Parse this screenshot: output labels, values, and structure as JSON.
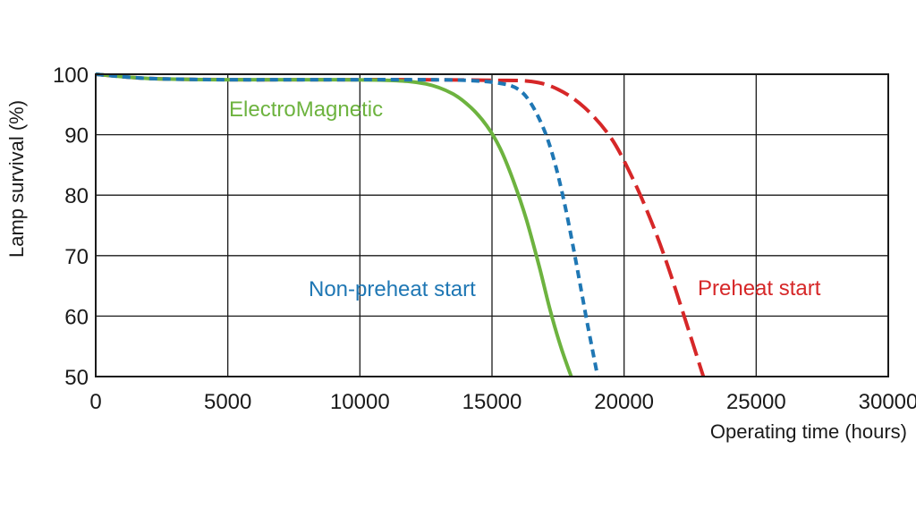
{
  "chart_data": {
    "type": "line",
    "xlabel": "Operating time (hours)",
    "ylabel": "Lamp survival  (%)",
    "xlim": [
      0,
      30000
    ],
    "ylim": [
      50,
      100
    ],
    "xticks": [
      0,
      5000,
      10000,
      15000,
      20000,
      25000,
      30000
    ],
    "yticks": [
      50,
      60,
      70,
      80,
      90,
      100
    ],
    "grid": true,
    "series": [
      {
        "name": "ElectroMagnetic",
        "color": "#6db33f",
        "style": "solid",
        "x": [
          0,
          2000,
          5000,
          8000,
          11000,
          12500,
          13500,
          14200,
          14800,
          15300,
          15800,
          16300,
          16800,
          17200,
          17600,
          18000
        ],
        "y": [
          100,
          99.3,
          99.1,
          99.1,
          99.0,
          98.4,
          96.8,
          94.5,
          91.5,
          87.8,
          82.5,
          76,
          68,
          61,
          55,
          50
        ]
      },
      {
        "name": "Non-preheat start",
        "color": "#1f77b4",
        "style": "dashed",
        "x": [
          0,
          2000,
          5000,
          8000,
          12000,
          14000,
          15300,
          16000,
          16500,
          17000,
          17400,
          17800,
          18200,
          18600,
          19000
        ],
        "y": [
          100,
          99.3,
          99.1,
          99.1,
          99.1,
          99.0,
          98.5,
          97.5,
          95,
          90.5,
          85,
          77.5,
          68.5,
          59,
          50
        ]
      },
      {
        "name": "Preheat start",
        "color": "#d62728",
        "style": "dash-long",
        "x": [
          0,
          2000,
          5000,
          8000,
          12000,
          15000,
          16500,
          17500,
          18500,
          19500,
          20300,
          21000,
          21600,
          22200,
          22600,
          23000
        ],
        "y": [
          100,
          99.3,
          99.1,
          99.1,
          99.1,
          99.0,
          98.8,
          97.5,
          94.5,
          89.5,
          83,
          76,
          69,
          61,
          55.5,
          50
        ]
      }
    ]
  }
}
